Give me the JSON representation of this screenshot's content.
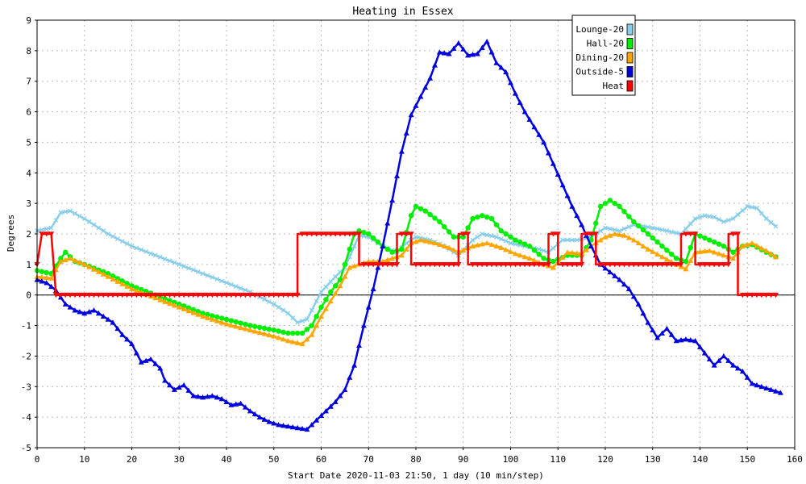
{
  "chart_data": {
    "type": "line",
    "title": "Heating in Essex",
    "xlabel": "Start Date 2020-11-03 21:50, 1 day (10 min/step)",
    "ylabel": "Degrees",
    "xlim": [
      0,
      160
    ],
    "ylim": [
      -5,
      9
    ],
    "x_ticks": [
      0,
      10,
      20,
      30,
      40,
      50,
      60,
      70,
      80,
      90,
      100,
      110,
      120,
      130,
      140,
      150,
      160
    ],
    "y_ticks": [
      -5,
      -4,
      -3,
      -2,
      -1,
      0,
      1,
      2,
      3,
      4,
      5,
      6,
      7,
      8,
      9
    ],
    "grid": true,
    "legend_position": "top-right",
    "series": [
      {
        "name": "Lounge-20",
        "color": "#87CEEB",
        "marker": "x",
        "points": [
          [
            0,
            2.1
          ],
          [
            3,
            2.2
          ],
          [
            5,
            2.7
          ],
          [
            7,
            2.75
          ],
          [
            10,
            2.5
          ],
          [
            15,
            2.0
          ],
          [
            20,
            1.6
          ],
          [
            25,
            1.3
          ],
          [
            30,
            1.0
          ],
          [
            35,
            0.7
          ],
          [
            40,
            0.4
          ],
          [
            45,
            0.1
          ],
          [
            50,
            -0.3
          ],
          [
            53,
            -0.6
          ],
          [
            55,
            -0.9
          ],
          [
            57,
            -0.8
          ],
          [
            60,
            0.1
          ],
          [
            63,
            0.6
          ],
          [
            65,
            0.9
          ],
          [
            68,
            1.95
          ],
          [
            70,
            1.9
          ],
          [
            73,
            1.6
          ],
          [
            76,
            1.4
          ],
          [
            78,
            1.7
          ],
          [
            80,
            1.9
          ],
          [
            83,
            1.8
          ],
          [
            86,
            1.6
          ],
          [
            89,
            1.3
          ],
          [
            92,
            1.8
          ],
          [
            94,
            2.0
          ],
          [
            97,
            1.9
          ],
          [
            100,
            1.7
          ],
          [
            103,
            1.6
          ],
          [
            106,
            1.5
          ],
          [
            108,
            1.4
          ],
          [
            111,
            1.8
          ],
          [
            114,
            1.8
          ],
          [
            117,
            1.9
          ],
          [
            120,
            2.2
          ],
          [
            123,
            2.1
          ],
          [
            126,
            2.3
          ],
          [
            130,
            2.2
          ],
          [
            133,
            2.1
          ],
          [
            136,
            2.0
          ],
          [
            139,
            2.5
          ],
          [
            141,
            2.6
          ],
          [
            143,
            2.55
          ],
          [
            145,
            2.4
          ],
          [
            147,
            2.5
          ],
          [
            150,
            2.9
          ],
          [
            152,
            2.85
          ],
          [
            154,
            2.5
          ],
          [
            156,
            2.25
          ]
        ]
      },
      {
        "name": "Hall-20",
        "color": "#00EE00",
        "marker": "circle",
        "points": [
          [
            0,
            0.8
          ],
          [
            3,
            0.7
          ],
          [
            5,
            1.2
          ],
          [
            6,
            1.4
          ],
          [
            8,
            1.1
          ],
          [
            10,
            1.0
          ],
          [
            15,
            0.7
          ],
          [
            20,
            0.3
          ],
          [
            25,
            0.0
          ],
          [
            30,
            -0.3
          ],
          [
            35,
            -0.6
          ],
          [
            40,
            -0.8
          ],
          [
            45,
            -1.0
          ],
          [
            50,
            -1.15
          ],
          [
            53,
            -1.25
          ],
          [
            56,
            -1.25
          ],
          [
            58,
            -1.0
          ],
          [
            60,
            -0.4
          ],
          [
            62,
            0.1
          ],
          [
            64,
            0.5
          ],
          [
            66,
            1.5
          ],
          [
            67,
            2.0
          ],
          [
            68,
            2.1
          ],
          [
            70,
            2.0
          ],
          [
            73,
            1.6
          ],
          [
            75,
            1.4
          ],
          [
            77,
            1.5
          ],
          [
            79,
            2.6
          ],
          [
            80,
            2.9
          ],
          [
            82,
            2.75
          ],
          [
            85,
            2.4
          ],
          [
            88,
            1.9
          ],
          [
            90,
            1.9
          ],
          [
            92,
            2.5
          ],
          [
            94,
            2.6
          ],
          [
            96,
            2.5
          ],
          [
            98,
            2.1
          ],
          [
            101,
            1.8
          ],
          [
            104,
            1.6
          ],
          [
            107,
            1.2
          ],
          [
            109,
            1.1
          ],
          [
            112,
            1.3
          ],
          [
            115,
            1.3
          ],
          [
            117,
            1.8
          ],
          [
            119,
            2.9
          ],
          [
            121,
            3.1
          ],
          [
            123,
            2.9
          ],
          [
            126,
            2.4
          ],
          [
            129,
            2.0
          ],
          [
            132,
            1.6
          ],
          [
            135,
            1.2
          ],
          [
            137,
            1.1
          ],
          [
            139,
            2.0
          ],
          [
            142,
            1.8
          ],
          [
            145,
            1.6
          ],
          [
            147,
            1.4
          ],
          [
            149,
            1.6
          ],
          [
            151,
            1.65
          ],
          [
            154,
            1.4
          ],
          [
            156,
            1.25
          ]
        ]
      },
      {
        "name": "Dining-20",
        "color": "#FFA500",
        "marker": "triangle",
        "points": [
          [
            0,
            0.6
          ],
          [
            3,
            0.55
          ],
          [
            5,
            1.1
          ],
          [
            7,
            1.2
          ],
          [
            10,
            1.0
          ],
          [
            15,
            0.6
          ],
          [
            20,
            0.2
          ],
          [
            25,
            -0.1
          ],
          [
            30,
            -0.4
          ],
          [
            35,
            -0.7
          ],
          [
            40,
            -0.95
          ],
          [
            45,
            -1.15
          ],
          [
            50,
            -1.35
          ],
          [
            53,
            -1.5
          ],
          [
            56,
            -1.6
          ],
          [
            58,
            -1.3
          ],
          [
            60,
            -0.7
          ],
          [
            62,
            -0.2
          ],
          [
            64,
            0.3
          ],
          [
            66,
            0.9
          ],
          [
            68,
            1.0
          ],
          [
            70,
            1.1
          ],
          [
            73,
            1.1
          ],
          [
            75,
            1.2
          ],
          [
            77,
            1.3
          ],
          [
            79,
            1.7
          ],
          [
            81,
            1.8
          ],
          [
            84,
            1.7
          ],
          [
            87,
            1.55
          ],
          [
            89,
            1.4
          ],
          [
            92,
            1.6
          ],
          [
            95,
            1.7
          ],
          [
            98,
            1.55
          ],
          [
            101,
            1.35
          ],
          [
            104,
            1.2
          ],
          [
            107,
            1.0
          ],
          [
            109,
            0.9
          ],
          [
            112,
            1.4
          ],
          [
            115,
            1.35
          ],
          [
            117,
            1.6
          ],
          [
            120,
            1.9
          ],
          [
            122,
            2.0
          ],
          [
            124,
            1.95
          ],
          [
            126,
            1.8
          ],
          [
            129,
            1.5
          ],
          [
            132,
            1.25
          ],
          [
            135,
            1.0
          ],
          [
            137,
            0.85
          ],
          [
            139,
            1.4
          ],
          [
            142,
            1.45
          ],
          [
            145,
            1.3
          ],
          [
            147,
            1.2
          ],
          [
            149,
            1.6
          ],
          [
            151,
            1.7
          ],
          [
            154,
            1.45
          ],
          [
            156,
            1.25
          ]
        ]
      },
      {
        "name": "Outside-5",
        "color": "#0000DD",
        "marker": "triangle",
        "points": [
          [
            0,
            0.5
          ],
          [
            2,
            0.4
          ],
          [
            4,
            0.15
          ],
          [
            6,
            -0.3
          ],
          [
            8,
            -0.5
          ],
          [
            10,
            -0.6
          ],
          [
            12,
            -0.5
          ],
          [
            14,
            -0.7
          ],
          [
            16,
            -0.9
          ],
          [
            18,
            -1.3
          ],
          [
            20,
            -1.6
          ],
          [
            22,
            -2.2
          ],
          [
            24,
            -2.1
          ],
          [
            26,
            -2.4
          ],
          [
            27,
            -2.8
          ],
          [
            29,
            -3.1
          ],
          [
            31,
            -2.95
          ],
          [
            33,
            -3.3
          ],
          [
            35,
            -3.35
          ],
          [
            37,
            -3.3
          ],
          [
            39,
            -3.4
          ],
          [
            41,
            -3.6
          ],
          [
            43,
            -3.55
          ],
          [
            45,
            -3.8
          ],
          [
            47,
            -4.0
          ],
          [
            49,
            -4.15
          ],
          [
            51,
            -4.25
          ],
          [
            53,
            -4.3
          ],
          [
            55,
            -4.35
          ],
          [
            57,
            -4.4
          ],
          [
            59,
            -4.1
          ],
          [
            61,
            -3.8
          ],
          [
            63,
            -3.5
          ],
          [
            65,
            -3.1
          ],
          [
            67,
            -2.3
          ],
          [
            69,
            -1.0
          ],
          [
            71,
            0.2
          ],
          [
            73,
            1.6
          ],
          [
            75,
            3.1
          ],
          [
            77,
            4.7
          ],
          [
            79,
            5.9
          ],
          [
            81,
            6.5
          ],
          [
            83,
            7.1
          ],
          [
            85,
            7.95
          ],
          [
            87,
            7.9
          ],
          [
            89,
            8.25
          ],
          [
            91,
            7.85
          ],
          [
            93,
            7.9
          ],
          [
            95,
            8.3
          ],
          [
            97,
            7.6
          ],
          [
            99,
            7.3
          ],
          [
            101,
            6.6
          ],
          [
            103,
            6.0
          ],
          [
            105,
            5.5
          ],
          [
            107,
            5.0
          ],
          [
            109,
            4.3
          ],
          [
            111,
            3.6
          ],
          [
            113,
            2.9
          ],
          [
            115,
            2.3
          ],
          [
            117,
            1.6
          ],
          [
            119,
            1.0
          ],
          [
            121,
            0.75
          ],
          [
            123,
            0.5
          ],
          [
            125,
            0.2
          ],
          [
            127,
            -0.3
          ],
          [
            129,
            -0.9
          ],
          [
            131,
            -1.4
          ],
          [
            133,
            -1.1
          ],
          [
            135,
            -1.5
          ],
          [
            137,
            -1.45
          ],
          [
            139,
            -1.5
          ],
          [
            141,
            -1.9
          ],
          [
            143,
            -2.3
          ],
          [
            145,
            -2.0
          ],
          [
            147,
            -2.3
          ],
          [
            149,
            -2.5
          ],
          [
            151,
            -2.9
          ],
          [
            153,
            -3.0
          ],
          [
            155,
            -3.1
          ],
          [
            157,
            -3.2
          ]
        ]
      },
      {
        "name": "Heat",
        "color": "#FF0000",
        "marker": "triangle-down",
        "points": [
          [
            0,
            1
          ],
          [
            1,
            2
          ],
          [
            3,
            2
          ],
          [
            4,
            0
          ],
          [
            55,
            0
          ],
          [
            55,
            2
          ],
          [
            68,
            2
          ],
          [
            68,
            1
          ],
          [
            76,
            1
          ],
          [
            76,
            2
          ],
          [
            79,
            2
          ],
          [
            79,
            1
          ],
          [
            89,
            1
          ],
          [
            89,
            2
          ],
          [
            91,
            2
          ],
          [
            91,
            1
          ],
          [
            108,
            1
          ],
          [
            108,
            2
          ],
          [
            110,
            2
          ],
          [
            110,
            1
          ],
          [
            115,
            1
          ],
          [
            115,
            2
          ],
          [
            118,
            2
          ],
          [
            118,
            1
          ],
          [
            136,
            1
          ],
          [
            136,
            2
          ],
          [
            139,
            2
          ],
          [
            139,
            1
          ],
          [
            146,
            1
          ],
          [
            146,
            2
          ],
          [
            148,
            2
          ],
          [
            148,
            0
          ],
          [
            156,
            0
          ]
        ]
      }
    ]
  }
}
